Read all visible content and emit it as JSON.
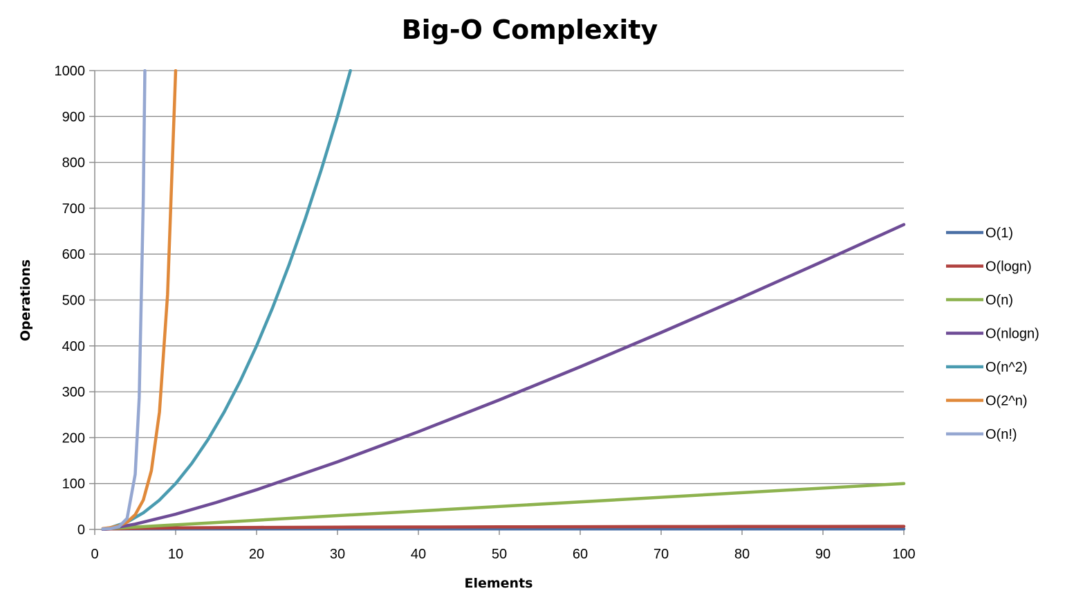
{
  "chart_data": {
    "type": "line",
    "title": "Big-O Complexity",
    "xlabel": "Elements",
    "ylabel": "Operations",
    "xlim": [
      0,
      100
    ],
    "ylim": [
      0,
      1000
    ],
    "x_ticks": [
      0,
      10,
      20,
      30,
      40,
      50,
      60,
      70,
      80,
      90,
      100
    ],
    "y_ticks": [
      0,
      100,
      200,
      300,
      400,
      500,
      600,
      700,
      800,
      900,
      1000
    ],
    "grid": true,
    "legend_position": "right",
    "series": [
      {
        "name": "O(1)",
        "color": "#4a6fa5",
        "x": [
          1,
          100
        ],
        "y": [
          1,
          1
        ]
      },
      {
        "name": "O(logn)",
        "color": "#b0413e",
        "x": [
          1,
          2,
          5,
          10,
          20,
          30,
          40,
          50,
          60,
          70,
          80,
          90,
          100
        ],
        "y": [
          0,
          1,
          2.32,
          3.32,
          4.32,
          4.91,
          5.32,
          5.64,
          5.91,
          6.13,
          6.32,
          6.49,
          6.64
        ]
      },
      {
        "name": "O(n)",
        "color": "#8db24e",
        "x": [
          1,
          100
        ],
        "y": [
          1,
          100
        ]
      },
      {
        "name": "O(nlogn)",
        "color": "#6e4c96",
        "x": [
          1,
          2,
          5,
          10,
          15,
          20,
          30,
          40,
          50,
          60,
          70,
          80,
          90,
          100
        ],
        "y": [
          0,
          2,
          11.6,
          33.2,
          58.6,
          86.4,
          147.2,
          212.9,
          282.2,
          354.4,
          429.1,
          505.8,
          584.3,
          664.4
        ]
      },
      {
        "name": "O(n^2)",
        "color": "#4a9bb0",
        "x": [
          1,
          2,
          4,
          6,
          8,
          10,
          12,
          14,
          16,
          18,
          20,
          22,
          24,
          26,
          28,
          30,
          31.6
        ],
        "y": [
          1,
          4,
          16,
          36,
          64,
          100,
          144,
          196,
          256,
          324,
          400,
          484,
          576,
          676,
          784,
          900,
          1000
        ]
      },
      {
        "name": "O(2^n)",
        "color": "#e0893a",
        "x": [
          1,
          2,
          3,
          4,
          5,
          6,
          7,
          8,
          9,
          10
        ],
        "y": [
          2,
          4,
          8,
          16,
          32,
          64,
          128,
          256,
          512,
          1000
        ]
      },
      {
        "name": "O(n!)",
        "color": "#95a7d1",
        "x": [
          1,
          2,
          3,
          4,
          5,
          5.5,
          6,
          6.2
        ],
        "y": [
          1,
          2,
          6,
          24,
          120,
          287,
          720,
          1000
        ]
      }
    ]
  }
}
